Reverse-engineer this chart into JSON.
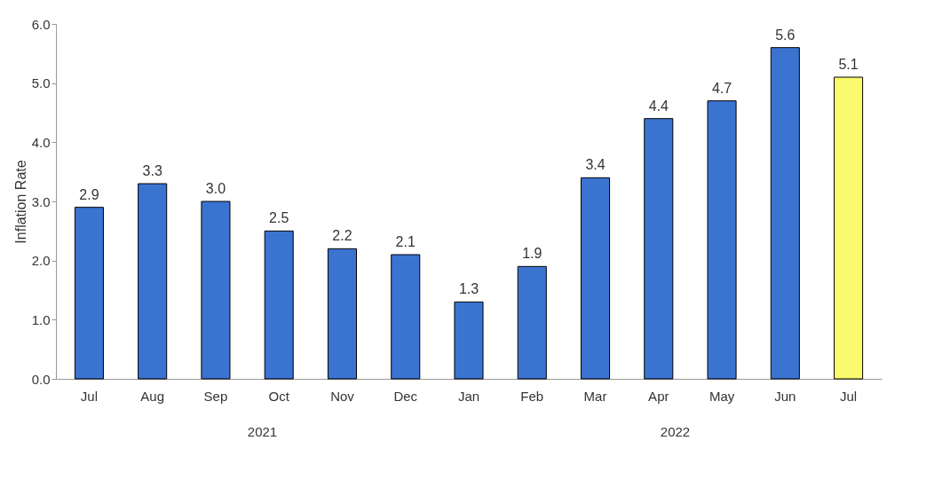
{
  "chart_data": {
    "type": "bar",
    "ylabel": "Inflation Rate",
    "categories": [
      "Jul",
      "Aug",
      "Sep",
      "Oct",
      "Nov",
      "Dec",
      "Jan",
      "Feb",
      "Mar",
      "Apr",
      "May",
      "Jun",
      "Jul"
    ],
    "values": [
      2.9,
      3.3,
      3.0,
      2.5,
      2.2,
      2.1,
      1.3,
      1.9,
      3.4,
      4.4,
      4.7,
      5.6,
      5.1
    ],
    "colors": [
      "#3b73d1",
      "#3b73d1",
      "#3b73d1",
      "#3b73d1",
      "#3b73d1",
      "#3b73d1",
      "#3b73d1",
      "#3b73d1",
      "#3b73d1",
      "#3b73d1",
      "#3b73d1",
      "#3b73d1",
      "#fafa6e"
    ],
    "ylim": [
      0,
      6
    ],
    "yticks": [
      {
        "value": 0,
        "label": "0.0"
      },
      {
        "value": 1,
        "label": "1.0"
      },
      {
        "value": 2,
        "label": "2.0"
      },
      {
        "value": 3,
        "label": "3.0"
      },
      {
        "value": 4,
        "label": "4.0"
      },
      {
        "value": 5,
        "label": "5.0"
      },
      {
        "value": 6,
        "label": "6.0"
      }
    ],
    "value_labels": [
      "2.9",
      "3.3",
      "3.0",
      "2.5",
      "2.2",
      "2.1",
      "1.3",
      "1.9",
      "3.4",
      "4.4",
      "4.7",
      "5.6",
      "5.1"
    ],
    "grid": false,
    "annotations": [
      "2021",
      "2022"
    ]
  }
}
